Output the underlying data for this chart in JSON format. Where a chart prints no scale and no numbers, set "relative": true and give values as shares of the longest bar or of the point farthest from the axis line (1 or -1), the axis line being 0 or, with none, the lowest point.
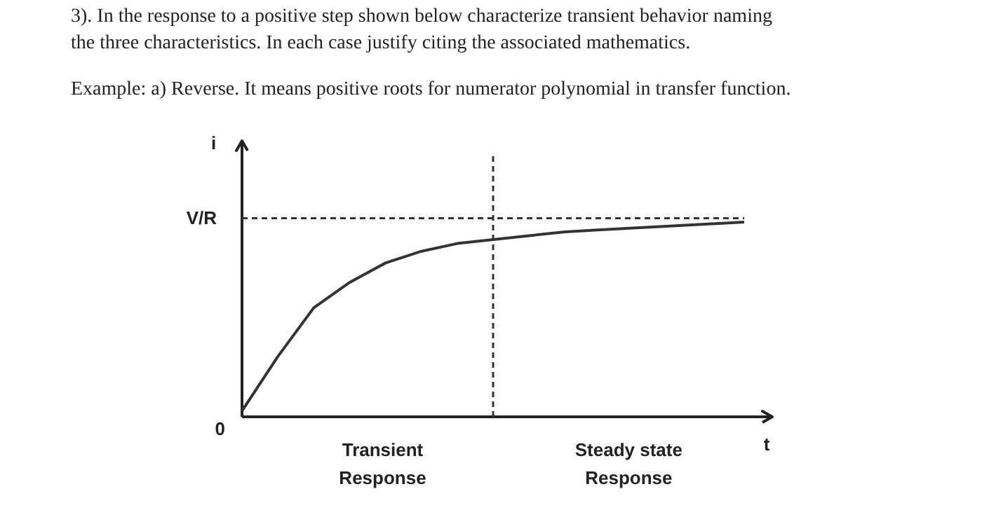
{
  "chart_data": {
    "type": "line",
    "title": "3). In the response to a positive step shown below characterize transient behavior naming the three characteristics. In each case justify citing the associated mathematics.",
    "subtitle": "Example: a) Reverse. It means positive roots for numerator polynomial in transfer function.",
    "xlabel": "t",
    "ylabel": "i",
    "relative": true,
    "categories": [
      null,
      null,
      null,
      null,
      null,
      null,
      null,
      null,
      null,
      null,
      null,
      null,
      null,
      null,
      null
    ],
    "series": [
      {
        "color": "#333333",
        "values": [
          0.03,
          0.31,
          0.56,
          0.69,
          0.79,
          0.85,
          0.89,
          0.91,
          0.93,
          0.95,
          0.96,
          0.97,
          0.98,
          0.99,
          1
        ]
      }
    ],
    "grid": false,
    "marker": "none",
    "line_style": "solid",
    "ref_lines": [
      {
        "axis": "y",
        "value": 1.02,
        "label": "V/R",
        "line_style": "dashed",
        "color": "#333333"
      }
    ],
    "annotations": [
      "0",
      "Transient Response",
      "Steady state Response"
    ]
  }
}
